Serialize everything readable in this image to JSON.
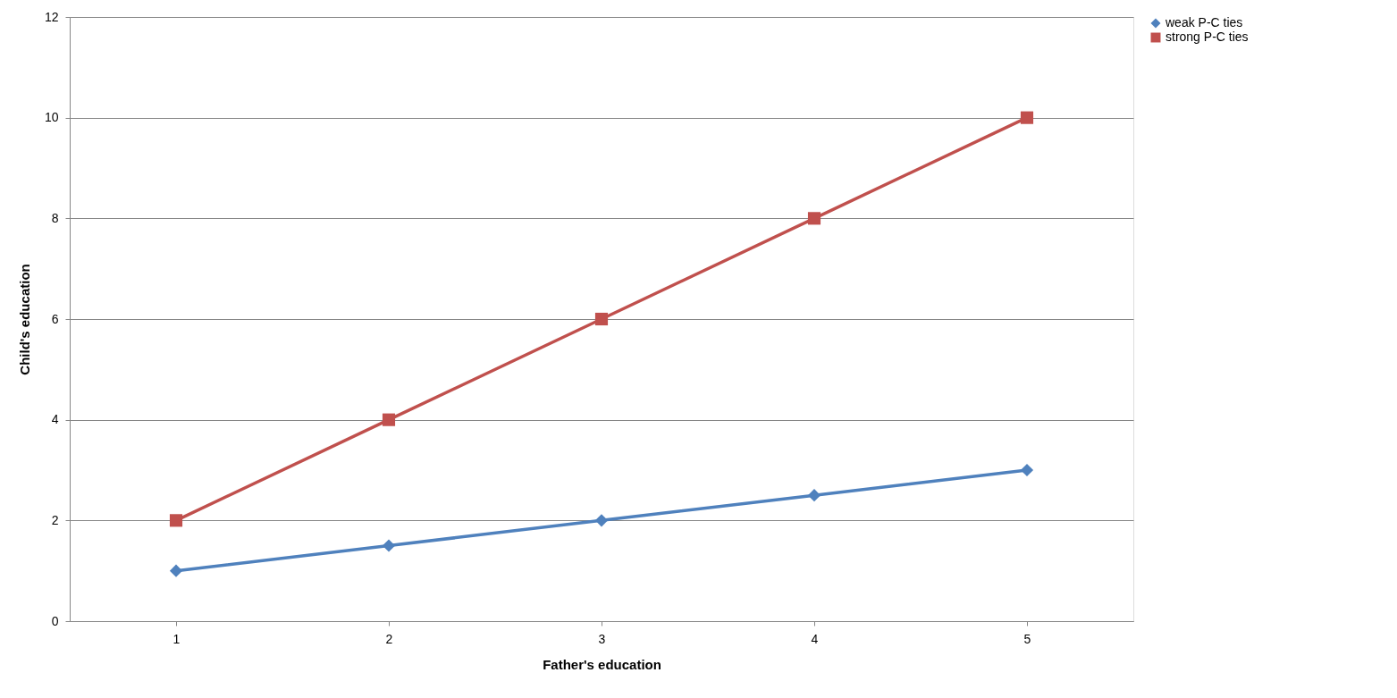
{
  "chart_data": {
    "type": "line",
    "xlabel": "Father's education",
    "ylabel": "Child's education",
    "categories": [
      "1",
      "2",
      "3",
      "4",
      "5"
    ],
    "series": [
      {
        "name": "weak P-C ties",
        "color": "#4f81bd",
        "marker": "diamond",
        "values": [
          1,
          1.5,
          2,
          2.5,
          3
        ]
      },
      {
        "name": "strong P-C ties",
        "color": "#c0504d",
        "marker": "square",
        "values": [
          2,
          4,
          6,
          8,
          10
        ]
      }
    ],
    "ylim": [
      0,
      12
    ],
    "yticks": [
      0,
      2,
      4,
      6,
      8,
      10,
      12
    ],
    "grid": "y",
    "legend": "right",
    "line_style": "solid"
  }
}
